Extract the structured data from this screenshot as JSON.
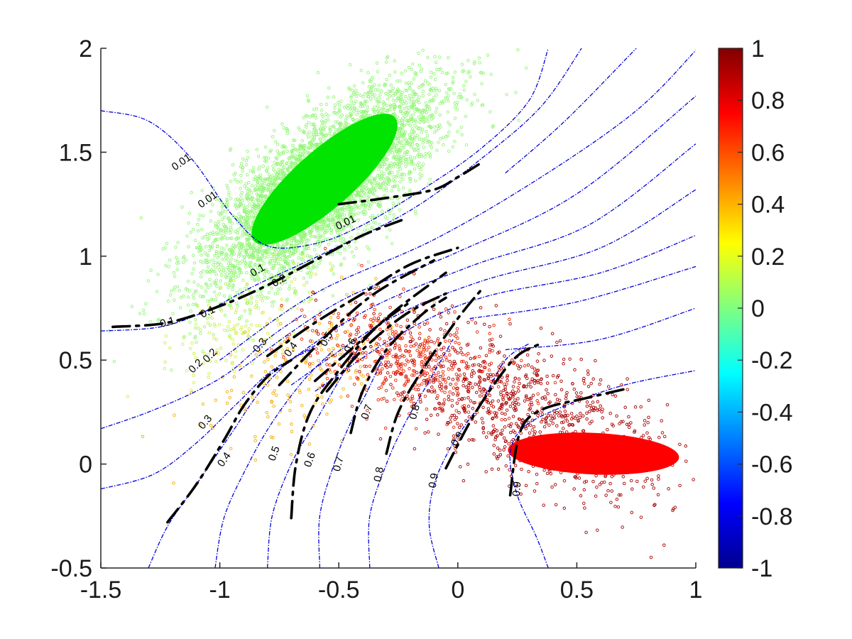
{
  "chart_data": {
    "type": "scatter",
    "title": "",
    "xlabel": "",
    "ylabel": "",
    "xlim": [
      -1.5,
      1
    ],
    "ylim": [
      -0.5,
      2
    ],
    "grid": false,
    "x_ticks": [
      "-1.5",
      "-1",
      "-0.5",
      "0",
      "0.5",
      "1"
    ],
    "y_ticks": [
      "-0.5",
      "0",
      "0.5",
      "1",
      "1.5",
      "2"
    ],
    "colorbar": {
      "position": "right",
      "colormap": "jet",
      "range": [
        -1,
        1
      ],
      "tick_labels": [
        "1",
        "0.8",
        "0.6",
        "0.4",
        "0.2",
        "0",
        "-0.2",
        "-0.4",
        "-0.6",
        "-0.8",
        "-1"
      ]
    },
    "series": [
      {
        "kind": "scatter-cluster",
        "color": "#95f57a",
        "mean": [
          -0.58,
          1.33
        ],
        "spread_major": 0.32,
        "spread_minor": 0.12,
        "angle_deg": 45,
        "count": 5000
      },
      {
        "kind": "filled-ellipse",
        "color": "#00e400",
        "center": [
          -0.56,
          1.37
        ],
        "semi_major": 0.42,
        "semi_minor": 0.13,
        "angle_deg": 46
      },
      {
        "kind": "scatter-cluster",
        "color": "#d0f050",
        "mean": [
          -0.9,
          0.7
        ],
        "spread_major": 0.2,
        "spread_minor": 0.1,
        "angle_deg": 40,
        "count": 150
      },
      {
        "kind": "scatter-cluster",
        "color": "#f5ad00",
        "mean": [
          -0.62,
          0.45
        ],
        "spread_major": 0.25,
        "spread_minor": 0.12,
        "angle_deg": 35,
        "count": 180
      },
      {
        "kind": "scatter-cluster",
        "color": "#ee2200",
        "mean": [
          -0.2,
          0.5
        ],
        "spread_major": 0.22,
        "spread_minor": 0.12,
        "angle_deg": -20,
        "count": 450
      },
      {
        "kind": "scatter-cluster",
        "color": "#a80000",
        "mean": [
          0.28,
          0.25
        ],
        "spread_major": 0.35,
        "spread_minor": 0.15,
        "angle_deg": -30,
        "count": 900
      },
      {
        "kind": "filled-ellipse",
        "color": "#ff0000",
        "center": [
          0.57,
          0.05
        ],
        "semi_major": 0.36,
        "semi_minor": 0.1,
        "angle_deg": -3
      }
    ],
    "contours": {
      "style": "blue dash-dot",
      "color": "#0000dd",
      "lines": [
        {
          "points": [
            [
              -1.5,
              1.7
            ],
            [
              -1.3,
              1.65
            ],
            [
              -1.12,
              1.47
            ],
            [
              -0.95,
              1.2
            ],
            [
              -0.8,
              1.05
            ],
            [
              -0.6,
              1.06
            ],
            [
              -0.4,
              1.15
            ],
            [
              -0.15,
              1.32
            ],
            [
              0.1,
              1.52
            ],
            [
              0.3,
              1.75
            ],
            [
              0.38,
              2.0
            ]
          ]
        },
        {
          "points": [
            [
              -1.5,
              0.64
            ],
            [
              -1.25,
              0.66
            ],
            [
              -1.05,
              0.74
            ],
            [
              -0.85,
              0.86
            ],
            [
              -0.55,
              1.02
            ],
            [
              -0.2,
              1.22
            ],
            [
              0.1,
              1.47
            ],
            [
              0.35,
              1.72
            ],
            [
              0.52,
              2.0
            ]
          ]
        },
        {
          "points": [
            [
              0.2,
              1.4
            ],
            [
              0.45,
              1.65
            ],
            [
              0.75,
              2.0
            ]
          ]
        },
        {
          "points": [
            [
              -1.0,
              0.5
            ],
            [
              -0.6,
              0.82
            ],
            [
              -0.1,
              1.08
            ],
            [
              0.35,
              1.38
            ],
            [
              0.75,
              1.7
            ],
            [
              1.0,
              1.99
            ]
          ]
        },
        {
          "points": [
            [
              -0.92,
              0.45
            ],
            [
              -0.5,
              0.78
            ],
            [
              0.0,
              1.02
            ],
            [
              0.5,
              1.3
            ],
            [
              1.0,
              1.77
            ]
          ]
        },
        {
          "points": [
            [
              -0.8,
              0.42
            ],
            [
              -0.4,
              0.73
            ],
            [
              0.05,
              0.95
            ],
            [
              0.55,
              1.15
            ],
            [
              1.0,
              1.54
            ]
          ]
        },
        {
          "points": [
            [
              -0.7,
              0.38
            ],
            [
              -0.3,
              0.69
            ],
            [
              0.1,
              0.88
            ],
            [
              0.6,
              1.04
            ],
            [
              1.0,
              1.32
            ]
          ]
        },
        {
          "points": [
            [
              -0.6,
              0.35
            ],
            [
              -0.25,
              0.62
            ],
            [
              0.1,
              0.8
            ],
            [
              0.6,
              0.92
            ],
            [
              1.0,
              1.1
            ]
          ]
        },
        {
          "points": [
            [
              0.05,
              0.7
            ],
            [
              0.5,
              0.78
            ],
            [
              1.0,
              0.95
            ]
          ]
        },
        {
          "points": [
            [
              0.2,
              0.55
            ],
            [
              0.6,
              0.6
            ],
            [
              1.0,
              0.75
            ]
          ]
        },
        {
          "points": [
            [
              -1.5,
              0.17
            ],
            [
              -1.3,
              0.25
            ],
            [
              -1.1,
              0.35
            ],
            [
              -0.95,
              0.45
            ],
            [
              -0.8,
              0.6
            ],
            [
              -0.65,
              0.72
            ]
          ]
        },
        {
          "points": [
            [
              -1.5,
              -0.12
            ],
            [
              -1.28,
              -0.05
            ],
            [
              -1.1,
              0.1
            ],
            [
              -0.92,
              0.3
            ],
            [
              -0.78,
              0.45
            ],
            [
              -0.62,
              0.55
            ]
          ]
        },
        {
          "points": [
            [
              -1.3,
              -0.5
            ],
            [
              -1.22,
              -0.3
            ],
            [
              -1.1,
              -0.1
            ],
            [
              -0.95,
              0.15
            ],
            [
              -0.83,
              0.35
            ],
            [
              -0.7,
              0.5
            ],
            [
              -0.55,
              0.6
            ]
          ]
        },
        {
          "points": [
            [
              -1.02,
              -0.5
            ],
            [
              -0.98,
              -0.25
            ],
            [
              -0.88,
              0.0
            ],
            [
              -0.78,
              0.2
            ],
            [
              -0.65,
              0.4
            ],
            [
              -0.52,
              0.55
            ]
          ]
        },
        {
          "points": [
            [
              -0.8,
              -0.5
            ],
            [
              -0.78,
              -0.25
            ],
            [
              -0.7,
              0.0
            ],
            [
              -0.6,
              0.2
            ],
            [
              -0.5,
              0.4
            ],
            [
              -0.42,
              0.55
            ]
          ]
        },
        {
          "points": [
            [
              -0.58,
              -0.5
            ],
            [
              -0.58,
              -0.25
            ],
            [
              -0.52,
              0.0
            ],
            [
              -0.45,
              0.2
            ],
            [
              -0.38,
              0.35
            ],
            [
              -0.3,
              0.55
            ]
          ]
        },
        {
          "points": [
            [
              -0.37,
              -0.5
            ],
            [
              -0.37,
              -0.25
            ],
            [
              -0.3,
              0.0
            ],
            [
              -0.22,
              0.2
            ],
            [
              -0.12,
              0.4
            ],
            [
              -0.02,
              0.6
            ]
          ]
        },
        {
          "points": [
            [
              -0.08,
              -0.5
            ],
            [
              -0.12,
              -0.3
            ],
            [
              -0.1,
              -0.1
            ],
            [
              -0.02,
              0.1
            ],
            [
              0.1,
              0.3
            ],
            [
              0.2,
              0.5
            ],
            [
              0.3,
              0.58
            ]
          ]
        },
        {
          "points": [
            [
              0.38,
              -0.5
            ],
            [
              0.33,
              -0.35
            ],
            [
              0.25,
              -0.15
            ],
            [
              0.22,
              0.05
            ],
            [
              0.28,
              0.18
            ],
            [
              0.45,
              0.28
            ],
            [
              0.7,
              0.38
            ],
            [
              1.0,
              0.45
            ]
          ]
        }
      ]
    },
    "decision_lines": {
      "style": "black dashed",
      "color": "#000000",
      "lines": [
        {
          "points": [
            [
              -1.45,
              0.66
            ],
            [
              -1.22,
              0.68
            ],
            [
              -1.0,
              0.76
            ],
            [
              -0.8,
              0.86
            ],
            [
              -0.6,
              0.98
            ],
            [
              -0.4,
              1.1
            ],
            [
              -0.22,
              1.18
            ]
          ]
        },
        {
          "points": [
            [
              -0.8,
              0.52
            ],
            [
              -0.6,
              0.68
            ],
            [
              -0.4,
              0.82
            ],
            [
              -0.2,
              0.96
            ],
            [
              0.0,
              1.04
            ]
          ]
        },
        {
          "points": [
            [
              -0.6,
              0.4
            ],
            [
              -0.42,
              0.58
            ],
            [
              -0.25,
              0.75
            ],
            [
              -0.05,
              0.92
            ]
          ]
        },
        {
          "points": [
            [
              -0.75,
              0.38
            ],
            [
              -0.55,
              0.62
            ],
            [
              -0.35,
              0.82
            ],
            [
              -0.1,
              0.98
            ]
          ]
        },
        {
          "points": [
            [
              -0.55,
              0.35
            ],
            [
              -0.4,
              0.55
            ],
            [
              -0.22,
              0.72
            ],
            [
              -0.05,
              0.82
            ]
          ]
        },
        {
          "points": [
            [
              -0.7,
              -0.26
            ],
            [
              -0.68,
              0.0
            ],
            [
              -0.62,
              0.25
            ],
            [
              -0.5,
              0.45
            ],
            [
              -0.35,
              0.65
            ],
            [
              -0.2,
              0.78
            ]
          ]
        },
        {
          "points": [
            [
              -0.45,
              0.15
            ],
            [
              -0.4,
              0.35
            ],
            [
              -0.3,
              0.55
            ],
            [
              -0.15,
              0.72
            ],
            [
              -0.05,
              0.8
            ]
          ]
        },
        {
          "points": [
            [
              -0.3,
              0.05
            ],
            [
              -0.25,
              0.25
            ],
            [
              -0.15,
              0.45
            ],
            [
              0.0,
              0.7
            ],
            [
              0.1,
              0.84
            ]
          ]
        },
        {
          "points": [
            [
              -0.05,
              -0.02
            ],
            [
              0.05,
              0.2
            ],
            [
              0.15,
              0.38
            ],
            [
              0.25,
              0.52
            ],
            [
              0.35,
              0.58
            ]
          ]
        },
        {
          "points": [
            [
              0.22,
              -0.15
            ],
            [
              0.26,
              0.15
            ],
            [
              0.35,
              0.26
            ],
            [
              0.55,
              0.32
            ],
            [
              0.7,
              0.36
            ]
          ]
        },
        {
          "points": [
            [
              -1.22,
              -0.28
            ],
            [
              -1.1,
              -0.1
            ],
            [
              -0.98,
              0.12
            ],
            [
              -0.9,
              0.28
            ],
            [
              -0.8,
              0.42
            ],
            [
              -0.7,
              0.5
            ]
          ]
        },
        {
          "points": [
            [
              -0.5,
              1.25
            ],
            [
              -0.3,
              1.28
            ],
            [
              -0.1,
              1.32
            ],
            [
              0.0,
              1.38
            ],
            [
              0.1,
              1.45
            ]
          ]
        }
      ]
    },
    "contour_labels": [
      {
        "text": "0.01",
        "x": -1.16,
        "y": 1.45,
        "angle": -35
      },
      {
        "text": "0.01",
        "x": -1.05,
        "y": 1.27,
        "angle": -35
      },
      {
        "text": "0.01",
        "x": -0.47,
        "y": 1.16,
        "angle": -25
      },
      {
        "text": "0.1",
        "x": -0.84,
        "y": 0.93,
        "angle": -30
      },
      {
        "text": "0.1",
        "x": -1.05,
        "y": 0.73,
        "angle": -25
      },
      {
        "text": "0.1",
        "x": -1.22,
        "y": 0.68,
        "angle": -15
      },
      {
        "text": "0.2",
        "x": -0.75,
        "y": 0.88,
        "angle": -30
      },
      {
        "text": "0.2",
        "x": -1.04,
        "y": 0.52,
        "angle": -45
      },
      {
        "text": "0.2",
        "x": -1.1,
        "y": 0.47,
        "angle": -45
      },
      {
        "text": "0.3",
        "x": -0.83,
        "y": 0.57,
        "angle": -50
      },
      {
        "text": "0.3",
        "x": -1.06,
        "y": 0.2,
        "angle": -50
      },
      {
        "text": "0.4",
        "x": -0.7,
        "y": 0.55,
        "angle": -55
      },
      {
        "text": "0.4",
        "x": -0.98,
        "y": 0.02,
        "angle": -55
      },
      {
        "text": "0.5",
        "x": -0.55,
        "y": 0.6,
        "angle": -60
      },
      {
        "text": "0.5",
        "x": -0.77,
        "y": 0.05,
        "angle": -70
      },
      {
        "text": "0.6",
        "x": -0.45,
        "y": 0.57,
        "angle": -65
      },
      {
        "text": "0.6",
        "x": -0.62,
        "y": 0.02,
        "angle": -70
      },
      {
        "text": "0.7",
        "x": -0.38,
        "y": 0.25,
        "angle": -70
      },
      {
        "text": "0.7",
        "x": -0.5,
        "y": 0.0,
        "angle": -75
      },
      {
        "text": "0.8",
        "x": -0.18,
        "y": 0.25,
        "angle": -75
      },
      {
        "text": "0.8",
        "x": -0.33,
        "y": -0.05,
        "angle": -80
      },
      {
        "text": "0.9",
        "x": 0.0,
        "y": 0.12,
        "angle": -60
      },
      {
        "text": "0.9",
        "x": -0.1,
        "y": -0.08,
        "angle": -80
      },
      {
        "text": "0.9",
        "x": 0.25,
        "y": -0.12,
        "angle": -85
      }
    ]
  }
}
